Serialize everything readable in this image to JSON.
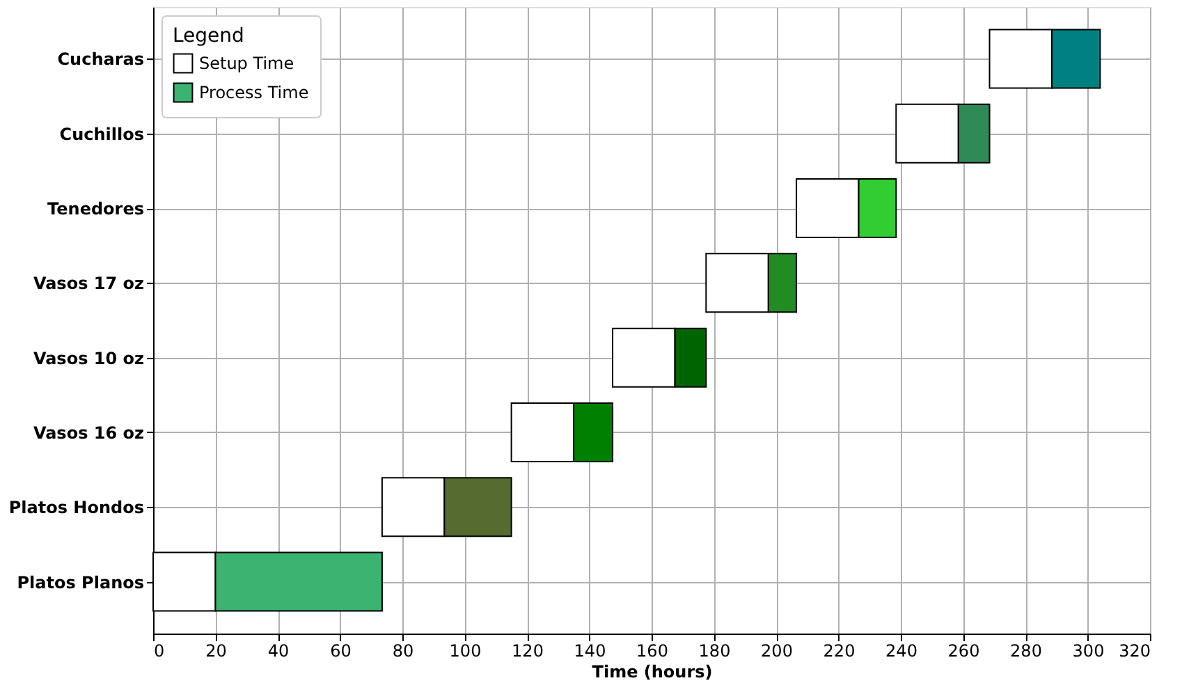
{
  "chart_data": {
    "type": "bar",
    "orientation": "horizontal",
    "xlabel": "Time (hours)",
    "legend_title": "Legend",
    "legend": "top left",
    "grid": true,
    "categories": [
      "Cucharas",
      "Cuchillos",
      "Tenedores",
      "Vasos 17 oz",
      "Vasos 10 oz",
      "Vasos 16 oz",
      "Platos Hondos",
      "Platos Planos"
    ],
    "series": [
      {
        "name": "Setup Time",
        "color": "#ffffff",
        "values": [
          20,
          20,
          20,
          20,
          20,
          20,
          20,
          20
        ],
        "base": [
          268.5,
          238.5,
          206.5,
          177.5,
          147.5,
          115,
          73.5,
          0
        ]
      },
      {
        "name": "Process Time",
        "color": "#3cb371",
        "colors": [
          "#008080",
          "#2e8b57",
          "#32cd32",
          "#228b22",
          "#006400",
          "#008000",
          "#556b2f",
          "#3cb371"
        ],
        "values": [
          15.5,
          10,
          12,
          9,
          10,
          12.5,
          21.5,
          53.5
        ],
        "base": [
          288.5,
          258.5,
          226.5,
          197.5,
          167.5,
          135,
          93.5,
          20
        ]
      }
    ],
    "xlim": [
      0,
      320
    ],
    "xticks": [
      0,
      20,
      40,
      60,
      80,
      100,
      120,
      140,
      160,
      180,
      200,
      220,
      240,
      260,
      280,
      300,
      320
    ]
  }
}
